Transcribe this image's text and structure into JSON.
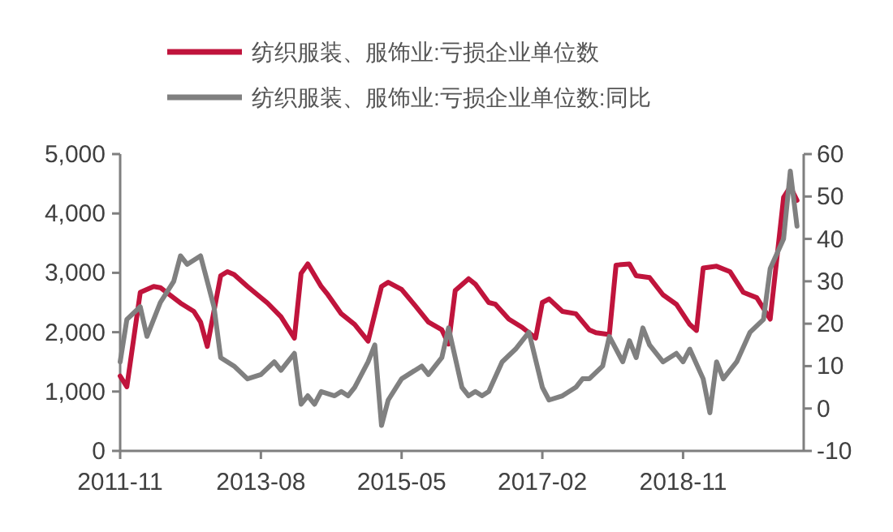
{
  "chart_data": {
    "type": "line",
    "legend": "top",
    "grid": false,
    "xlim": [
      "2011-11",
      "2020-05"
    ],
    "xticks": [
      "2011-11",
      "2013-08",
      "2015-05",
      "2017-02",
      "2018-11"
    ],
    "ylim": [
      0,
      5000
    ],
    "yticks": [
      0,
      {
        "value": 1000,
        "label": "1,000"
      },
      {
        "value": 2000,
        "label": "2,000"
      },
      {
        "value": 3000,
        "label": "3,000"
      },
      {
        "value": 4000,
        "label": "4,000"
      },
      {
        "value": 5000,
        "label": "5,000"
      }
    ],
    "y2lim": [
      -10,
      60
    ],
    "y2ticks": [
      -10,
      0,
      10,
      20,
      30,
      40,
      50,
      60
    ],
    "series": [
      {
        "name": "纺织服装、服饰业:亏损企业单位数",
        "color": "#c0143c",
        "x": [
          "2011-11",
          "2011-12",
          "2012-02",
          "2012-04",
          "2012-05",
          "2012-08",
          "2012-10",
          "2012-11",
          "2012-12",
          "2013-02",
          "2013-03",
          "2013-04",
          "2013-06",
          "2013-09",
          "2013-11",
          "2014-01",
          "2014-02",
          "2014-03",
          "2014-05",
          "2014-06",
          "2014-08",
          "2014-10",
          "2014-12",
          "2015-02",
          "2015-03",
          "2015-05",
          "2015-07",
          "2015-09",
          "2015-11",
          "2015-12",
          "2016-01",
          "2016-03",
          "2016-04",
          "2016-06",
          "2016-07",
          "2016-09",
          "2016-11",
          "2017-01",
          "2017-02",
          "2017-03",
          "2017-05",
          "2017-07",
          "2017-09",
          "2017-10",
          "2017-12",
          "2018-01",
          "2018-03",
          "2018-04",
          "2018-06",
          "2018-08",
          "2018-10",
          "2018-12",
          "2019-01",
          "2019-02",
          "2019-04",
          "2019-06",
          "2019-08",
          "2019-10",
          "2019-12",
          "2020-02",
          "2020-03",
          "2020-04"
        ],
        "values": [
          1260,
          1080,
          2670,
          2770,
          2750,
          2490,
          2350,
          2170,
          1760,
          2950,
          3020,
          2970,
          2770,
          2490,
          2260,
          1900,
          2990,
          3150,
          2770,
          2630,
          2310,
          2130,
          1850,
          2770,
          2840,
          2720,
          2450,
          2170,
          2040,
          1800,
          2700,
          2900,
          2810,
          2500,
          2470,
          2220,
          2080,
          1900,
          2500,
          2560,
          2350,
          2310,
          2040,
          1990,
          1960,
          3130,
          3150,
          2950,
          2920,
          2630,
          2470,
          2130,
          2030,
          3080,
          3110,
          3020,
          2670,
          2580,
          2220,
          4270,
          4450,
          4220
        ]
      },
      {
        "name": "纺织服装、服饰业:亏损企业单位数:同比",
        "color": "#808080",
        "axis": "y2",
        "x": [
          "2011-11",
          "2011-12",
          "2012-02",
          "2012-03",
          "2012-05",
          "2012-07",
          "2012-08",
          "2012-09",
          "2012-11",
          "2013-01",
          "2013-02",
          "2013-04",
          "2013-06",
          "2013-08",
          "2013-10",
          "2013-11",
          "2014-01",
          "2014-02",
          "2014-03",
          "2014-04",
          "2014-05",
          "2014-07",
          "2014-08",
          "2014-09",
          "2014-10",
          "2014-12",
          "2015-01",
          "2015-02",
          "2015-03",
          "2015-05",
          "2015-06",
          "2015-08",
          "2015-09",
          "2015-11",
          "2015-12",
          "2016-02",
          "2016-03",
          "2016-04",
          "2016-05",
          "2016-06",
          "2016-08",
          "2016-10",
          "2016-11",
          "2016-12",
          "2017-02",
          "2017-03",
          "2017-05",
          "2017-07",
          "2017-08",
          "2017-09",
          "2017-11",
          "2017-12",
          "2018-02",
          "2018-03",
          "2018-04",
          "2018-05",
          "2018-06",
          "2018-08",
          "2018-10",
          "2018-11",
          "2018-12",
          "2019-02",
          "2019-03",
          "2019-04",
          "2019-05",
          "2019-07",
          "2019-09",
          "2019-11",
          "2019-12",
          "2020-02",
          "2020-03",
          "2020-04"
        ],
        "values": [
          11,
          21,
          24,
          17,
          25,
          30,
          36,
          34,
          36,
          24,
          12,
          10,
          7,
          8,
          11,
          9,
          13,
          1,
          3,
          1,
          4,
          3,
          4,
          3,
          5,
          11,
          15,
          -4,
          2,
          7,
          8,
          10,
          8,
          12,
          19,
          5,
          3,
          4,
          3,
          4,
          11,
          14,
          16,
          18,
          5,
          2,
          3,
          5,
          7,
          7,
          10,
          17,
          11,
          16,
          12,
          19,
          15,
          11,
          13,
          11,
          14,
          7,
          -1,
          11,
          7,
          11,
          18,
          21,
          33,
          40,
          56,
          43
        ]
      }
    ]
  }
}
